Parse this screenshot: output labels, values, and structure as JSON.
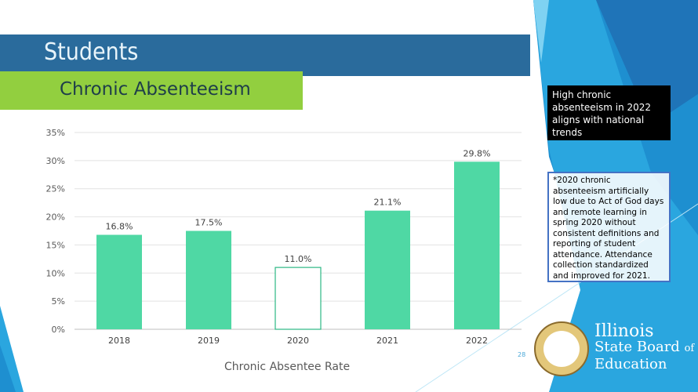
{
  "header": {
    "title": "Students",
    "subtitle": "Chronic Absenteeism"
  },
  "callouts": {
    "primary": "High chronic absenteeism in 2022 aligns with national trends",
    "note": "*2020 chronic absenteeism artificially low due to Act of God days and remote learning in spring 2020 without consistent definitions and reporting of student attendance. Attendance collection standardized and improved for 2021."
  },
  "page_number": "28",
  "logo": {
    "seal_text": "Seal of the State of Illinois",
    "line1": "Illinois",
    "line2": "State Board",
    "line2b": "of",
    "line3": "Education"
  },
  "colors": {
    "title_bar": "#2a6b9c",
    "subtitle_bar": "#92cf3f",
    "bar": "#4fd8a4",
    "bar_highlight": "#ffffff"
  },
  "chart_data": {
    "type": "bar",
    "categories": [
      "2018",
      "2019",
      "2020",
      "2021",
      "2022"
    ],
    "values": [
      16.8,
      17.5,
      11.0,
      21.1,
      29.8
    ],
    "data_labels": [
      "16.8%",
      "17.5%",
      "11.0%",
      "21.1%",
      "29.8%"
    ],
    "xlabel": "Chronic Absentee Rate",
    "ylabel": "",
    "ylim": [
      0,
      35
    ],
    "yticks": [
      "0%",
      "5%",
      "10%",
      "15%",
      "20%",
      "25%",
      "30%",
      "35%"
    ],
    "grid": true,
    "hollow_category": "2020"
  }
}
